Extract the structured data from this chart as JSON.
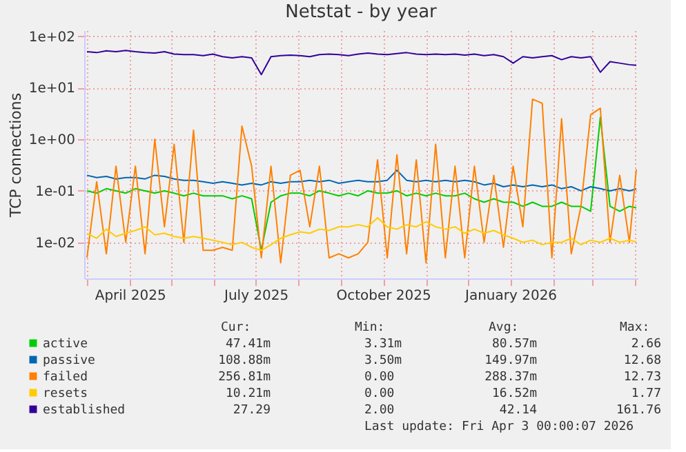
{
  "chart_data": {
    "type": "line",
    "title": "Netstat - by year",
    "ylabel": "TCP connections",
    "log": true,
    "grid": true,
    "legend": "bottom",
    "xlim": [
      "2025-02-27",
      "2026-04-03"
    ],
    "xticks": [
      {
        "value": "2025-03-01",
        "label": null
      },
      {
        "value": "2025-04-01",
        "label": "April 2025"
      },
      {
        "value": "2025-05-01",
        "label": null
      },
      {
        "value": "2025-06-01",
        "label": null
      },
      {
        "value": "2025-07-01",
        "label": "July 2025"
      },
      {
        "value": "2025-08-01",
        "label": null
      },
      {
        "value": "2025-09-01",
        "label": null
      },
      {
        "value": "2025-10-01",
        "label": "October 2025"
      },
      {
        "value": "2025-11-01",
        "label": null
      },
      {
        "value": "2025-12-01",
        "label": null
      },
      {
        "value": "2026-01-01",
        "label": "January 2026"
      },
      {
        "value": "2026-02-01",
        "label": null
      },
      {
        "value": "2026-03-01",
        "label": null
      },
      {
        "value": "2026-04-01",
        "label": null
      }
    ],
    "ylim": [
      0.002,
      130
    ],
    "yticks": [
      {
        "value": 0.01,
        "label": "1e-02"
      },
      {
        "value": 0.1,
        "label": "1e-01"
      },
      {
        "value": 1,
        "label": "1e+00"
      },
      {
        "value": 10,
        "label": "1e+01"
      },
      {
        "value": 100,
        "label": "1e+02"
      }
    ],
    "x": [
      "2025-03-01",
      "2025-03-08",
      "2025-03-15",
      "2025-03-22",
      "2025-03-29",
      "2025-04-05",
      "2025-04-12",
      "2025-04-19",
      "2025-04-26",
      "2025-05-03",
      "2025-05-10",
      "2025-05-17",
      "2025-05-24",
      "2025-05-31",
      "2025-06-07",
      "2025-06-14",
      "2025-06-21",
      "2025-06-28",
      "2025-07-05",
      "2025-07-12",
      "2025-07-19",
      "2025-07-26",
      "2025-08-02",
      "2025-08-09",
      "2025-08-16",
      "2025-08-23",
      "2025-08-30",
      "2025-09-06",
      "2025-09-13",
      "2025-09-20",
      "2025-09-27",
      "2025-10-04",
      "2025-10-11",
      "2025-10-18",
      "2025-10-25",
      "2025-11-01",
      "2025-11-08",
      "2025-11-15",
      "2025-11-22",
      "2025-11-29",
      "2025-12-06",
      "2025-12-13",
      "2025-12-20",
      "2025-12-27",
      "2026-01-03",
      "2026-01-10",
      "2026-01-17",
      "2026-01-24",
      "2026-01-31",
      "2026-02-07",
      "2026-02-14",
      "2026-02-21",
      "2026-02-28",
      "2026-03-07",
      "2026-03-14",
      "2026-03-21",
      "2026-03-28",
      "2026-04-02"
    ],
    "series": [
      {
        "name": "active",
        "color": "#00cc00",
        "values": [
          0.1,
          0.09,
          0.11,
          0.1,
          0.09,
          0.11,
          0.1,
          0.09,
          0.1,
          0.09,
          0.08,
          0.09,
          0.08,
          0.08,
          0.08,
          0.07,
          0.08,
          0.07,
          0.007,
          0.06,
          0.08,
          0.09,
          0.09,
          0.08,
          0.1,
          0.09,
          0.08,
          0.09,
          0.08,
          0.1,
          0.09,
          0.09,
          0.1,
          0.08,
          0.09,
          0.08,
          0.09,
          0.08,
          0.08,
          0.09,
          0.07,
          0.06,
          0.07,
          0.06,
          0.06,
          0.05,
          0.06,
          0.05,
          0.05,
          0.06,
          0.05,
          0.05,
          0.04,
          2.66,
          0.05,
          0.04,
          0.05,
          0.047
        ]
      },
      {
        "name": "passive",
        "color": "#0066b3",
        "values": [
          0.2,
          0.18,
          0.19,
          0.17,
          0.18,
          0.18,
          0.17,
          0.2,
          0.19,
          0.17,
          0.16,
          0.16,
          0.15,
          0.14,
          0.15,
          0.14,
          0.13,
          0.14,
          0.13,
          0.15,
          0.14,
          0.15,
          0.15,
          0.16,
          0.15,
          0.16,
          0.14,
          0.15,
          0.16,
          0.15,
          0.15,
          0.16,
          0.25,
          0.16,
          0.15,
          0.16,
          0.15,
          0.16,
          0.15,
          0.16,
          0.15,
          0.13,
          0.14,
          0.12,
          0.13,
          0.12,
          0.13,
          0.12,
          0.13,
          0.11,
          0.12,
          0.1,
          0.12,
          0.11,
          0.1,
          0.11,
          0.1,
          0.109
        ]
      },
      {
        "name": "failed",
        "color": "#ff8000",
        "values": [
          0.005,
          0.15,
          0.006,
          0.3,
          0.01,
          0.3,
          0.006,
          1.0,
          0.02,
          0.8,
          0.01,
          1.5,
          0.007,
          0.007,
          0.008,
          0.007,
          1.8,
          0.3,
          0.005,
          0.3,
          0.004,
          0.2,
          0.25,
          0.02,
          0.3,
          0.005,
          0.006,
          0.005,
          0.006,
          0.01,
          0.4,
          0.005,
          0.5,
          0.006,
          0.4,
          0.004,
          0.8,
          0.005,
          0.3,
          0.005,
          0.3,
          0.01,
          0.2,
          0.008,
          0.3,
          0.02,
          6,
          5,
          0.005,
          2.5,
          0.006,
          0.05,
          3,
          4,
          0.01,
          0.2,
          0.01,
          0.26
        ]
      },
      {
        "name": "resets",
        "color": "#ffcc00",
        "values": [
          0.015,
          0.012,
          0.018,
          0.013,
          0.015,
          0.017,
          0.02,
          0.014,
          0.015,
          0.013,
          0.012,
          0.013,
          0.012,
          0.011,
          0.01,
          0.009,
          0.01,
          0.008,
          0.007,
          0.009,
          0.012,
          0.014,
          0.016,
          0.015,
          0.018,
          0.017,
          0.02,
          0.02,
          0.022,
          0.02,
          0.03,
          0.02,
          0.018,
          0.022,
          0.02,
          0.025,
          0.02,
          0.018,
          0.02,
          0.015,
          0.018,
          0.015,
          0.017,
          0.014,
          0.012,
          0.01,
          0.011,
          0.009,
          0.01,
          0.01,
          0.012,
          0.009,
          0.011,
          0.01,
          0.012,
          0.01,
          0.011,
          0.0102
        ]
      },
      {
        "name": "established",
        "color": "#330099",
        "values": [
          50,
          48,
          52,
          50,
          53,
          50,
          48,
          47,
          50,
          45,
          44,
          44,
          42,
          45,
          40,
          38,
          40,
          38,
          18,
          40,
          42,
          43,
          42,
          40,
          44,
          45,
          44,
          42,
          45,
          47,
          45,
          44,
          46,
          48,
          45,
          44,
          45,
          44,
          45,
          43,
          45,
          42,
          44,
          40,
          30,
          40,
          38,
          40,
          42,
          35,
          40,
          38,
          40,
          20,
          32,
          30,
          28,
          27.29
        ]
      }
    ],
    "annotations": [
      "Cur:",
      "Min:",
      "Avg:",
      "Max:",
      "47.41m",
      "3.31m",
      "80.57m",
      "2.66",
      "108.88m",
      "3.50m",
      "149.97m",
      "12.68",
      "256.81m",
      "0.00",
      "288.37m",
      "12.73",
      "10.21m",
      "0.00",
      "16.52m",
      "1.77",
      "27.29",
      "2.00",
      "42.14",
      "161.76",
      "Last update: Fri Apr  3 00:00:07 2026"
    ]
  }
}
